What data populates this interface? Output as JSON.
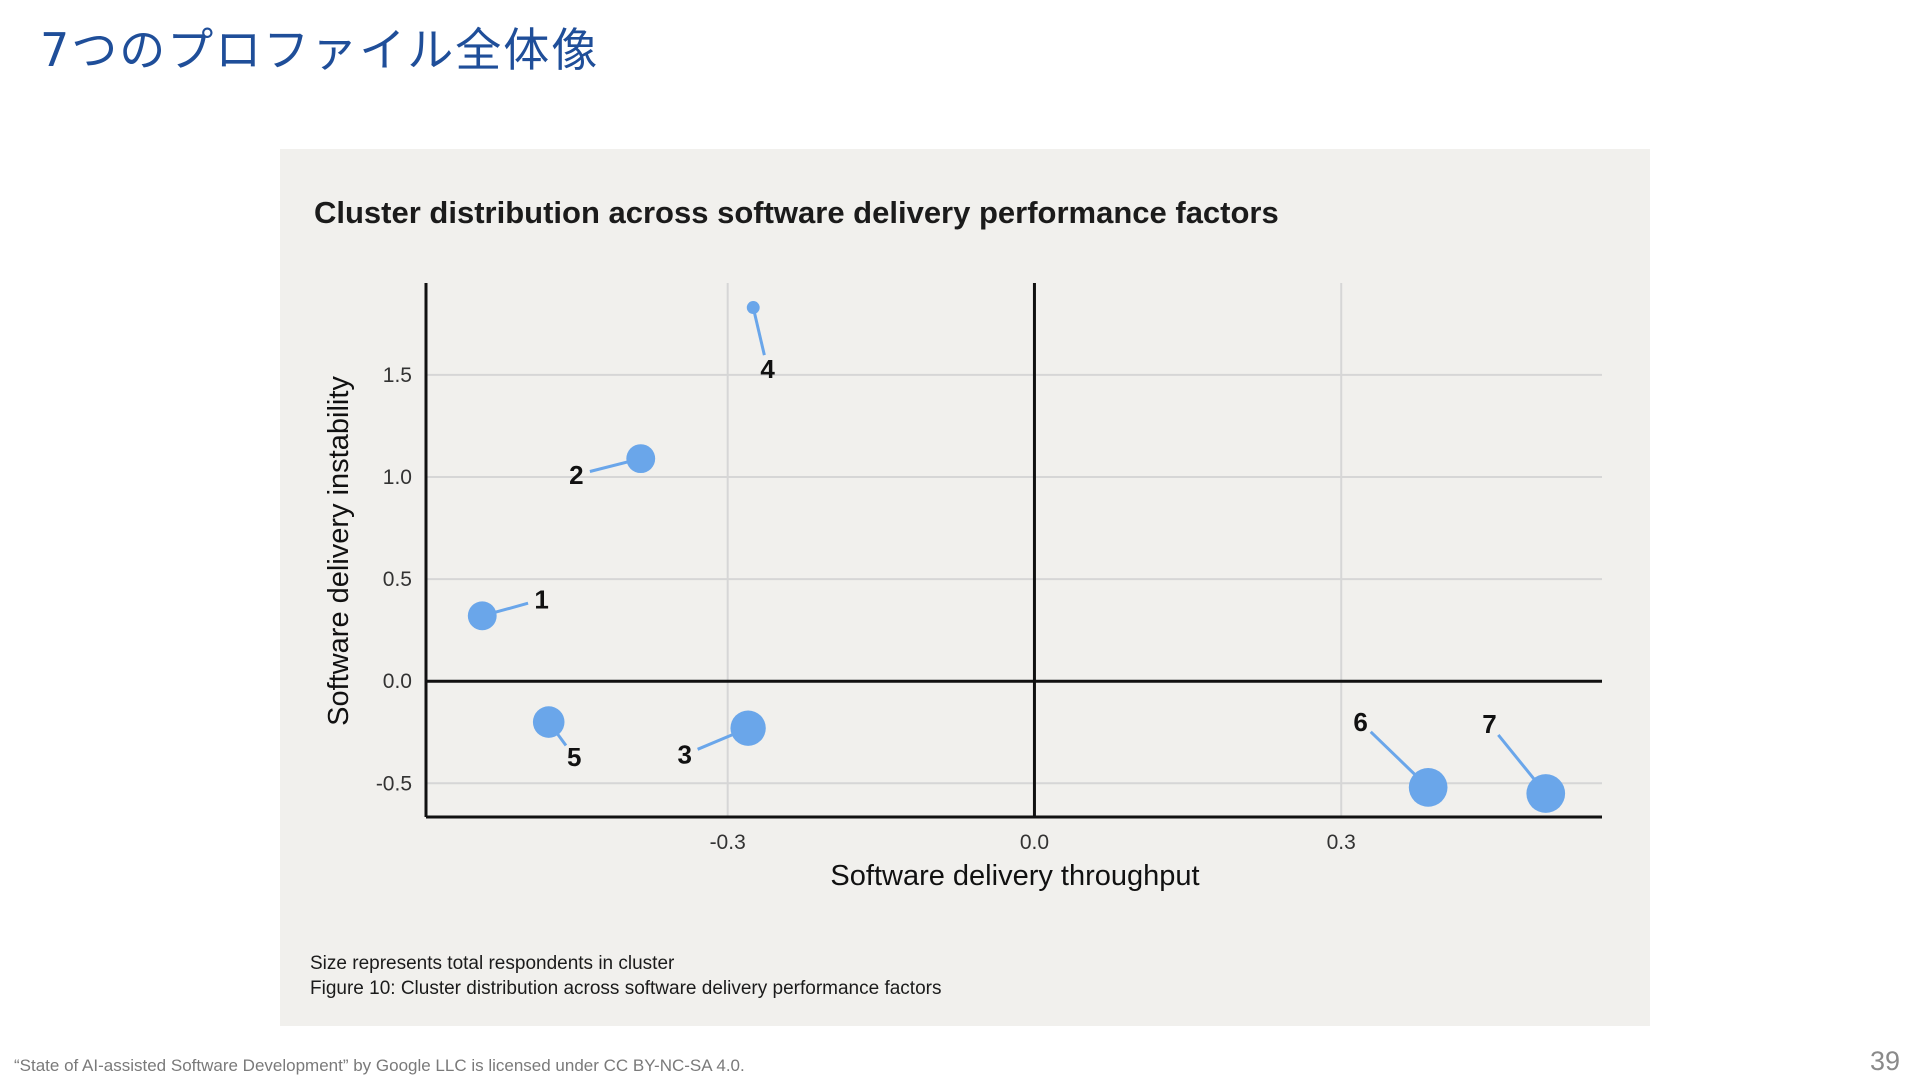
{
  "slide": {
    "title": "7つのプロファイル全体像",
    "credit": "“State of AI-assisted Software Development” by Google LLC is licensed under CC BY-NC-SA 4.0.",
    "page_number": "39"
  },
  "notes": {
    "size_note": "Size represents total respondents in cluster",
    "caption": "Figure 10: Cluster distribution across software delivery performance factors"
  },
  "colors": {
    "point": "#6aa6ea",
    "grid": "#d6d6d6",
    "axis": "#111111"
  },
  "chart_data": {
    "type": "scatter",
    "title": "Cluster distribution across software delivery performance factors",
    "xlabel": "Software delivery throughput",
    "ylabel": "Software delivery instability",
    "xlim": [
      -0.595,
      0.555
    ],
    "ylim": [
      -0.665,
      1.95
    ],
    "x_ticks": [
      {
        "value": -0.3,
        "label": "-0.3"
      },
      {
        "value": 0.0,
        "label": "0.0"
      },
      {
        "value": 0.3,
        "label": "0.3"
      }
    ],
    "y_ticks": [
      {
        "value": 1.5,
        "label": "1.5"
      },
      {
        "value": 1.0,
        "label": "1.0"
      },
      {
        "value": 0.5,
        "label": "0.5"
      },
      {
        "value": 0.0,
        "label": "0.0"
      },
      {
        "value": -0.5,
        "label": "-0.5"
      }
    ],
    "size_encoding": "total respondents in cluster",
    "points": [
      {
        "label": "1",
        "x": -0.54,
        "y": 0.32,
        "size": 2,
        "label_dx": 0.058,
        "label_dy": 0.08
      },
      {
        "label": "2",
        "x": -0.385,
        "y": 1.09,
        "size": 2,
        "label_dx": -0.063,
        "label_dy": -0.08
      },
      {
        "label": "3",
        "x": -0.28,
        "y": -0.23,
        "size": 3,
        "label_dx": -0.062,
        "label_dy": -0.13
      },
      {
        "label": "4",
        "x": -0.275,
        "y": 1.83,
        "size": 0.4,
        "label_dx": 0.014,
        "label_dy": -0.3
      },
      {
        "label": "5",
        "x": -0.475,
        "y": -0.2,
        "size": 2.4,
        "label_dx": 0.025,
        "label_dy": -0.17
      },
      {
        "label": "6",
        "x": 0.385,
        "y": -0.52,
        "size": 3.6,
        "label_dx": -0.066,
        "label_dy": 0.32
      },
      {
        "label": "7",
        "x": 0.5,
        "y": -0.55,
        "size": 3.6,
        "label_dx": -0.055,
        "label_dy": 0.34
      }
    ]
  }
}
